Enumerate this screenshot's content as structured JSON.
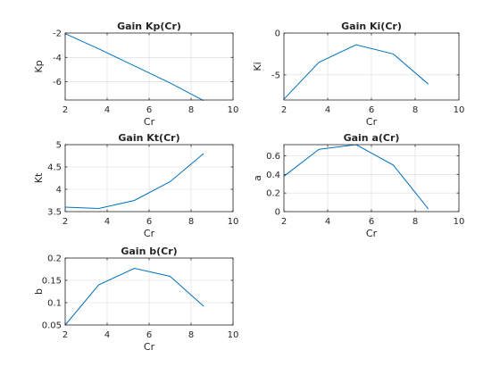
{
  "chart_data": [
    {
      "type": "line",
      "title": "Gain Kp(Cr)",
      "xlabel": "Cr",
      "ylabel": "Kp",
      "xlim": [
        2,
        10
      ],
      "ylim": [
        -7.5,
        -2
      ],
      "xticks": [
        2,
        4,
        6,
        8,
        10
      ],
      "yticks": [
        -2,
        -4,
        -6
      ],
      "grid": true,
      "color": "#0072BD",
      "x": [
        2,
        3.6,
        5.3,
        7,
        8.6
      ],
      "y": [
        -2.05,
        -3.3,
        -4.7,
        -6.1,
        -7.55
      ]
    },
    {
      "type": "line",
      "title": "Gain Ki(Cr)",
      "xlabel": "Cr",
      "ylabel": "Ki",
      "xlim": [
        2,
        10
      ],
      "ylim": [
        -8,
        0
      ],
      "xticks": [
        2,
        4,
        6,
        8,
        10
      ],
      "yticks": [
        0,
        -5
      ],
      "grid": true,
      "color": "#0072BD",
      "x": [
        2,
        3.6,
        5.3,
        7,
        8.6
      ],
      "y": [
        -7.9,
        -3.5,
        -1.4,
        -2.5,
        -6.1
      ]
    },
    {
      "type": "line",
      "title": "Gain Kt(Cr)",
      "xlabel": "Cr",
      "ylabel": "Kt",
      "xlim": [
        2,
        10
      ],
      "ylim": [
        3.5,
        5
      ],
      "xticks": [
        2,
        4,
        6,
        8,
        10
      ],
      "yticks": [
        3.5,
        4,
        4.5,
        5
      ],
      "grid": true,
      "color": "#0072BD",
      "x": [
        2,
        3.6,
        5.3,
        7,
        8.6
      ],
      "y": [
        3.6,
        3.57,
        3.75,
        4.17,
        4.8
      ]
    },
    {
      "type": "line",
      "title": "Gain a(Cr)",
      "xlabel": "Cr",
      "ylabel": "a",
      "xlim": [
        2,
        10
      ],
      "ylim": [
        0,
        0.72
      ],
      "xticks": [
        2,
        4,
        6,
        8,
        10
      ],
      "yticks": [
        0,
        0.2,
        0.4,
        0.6
      ],
      "grid": true,
      "color": "#0072BD",
      "x": [
        2,
        3.6,
        5.3,
        7,
        8.6
      ],
      "y": [
        0.38,
        0.67,
        0.72,
        0.5,
        0.03
      ]
    },
    {
      "type": "line",
      "title": "Gain b(Cr)",
      "xlabel": "Cr",
      "ylabel": "b",
      "xlim": [
        2,
        10
      ],
      "ylim": [
        0.05,
        0.2
      ],
      "xticks": [
        2,
        4,
        6,
        8,
        10
      ],
      "yticks": [
        0.05,
        0.1,
        0.15,
        0.2
      ],
      "grid": true,
      "color": "#0072BD",
      "x": [
        2,
        3.6,
        5.3,
        7,
        8.6
      ],
      "y": [
        0.05,
        0.14,
        0.177,
        0.159,
        0.092
      ]
    }
  ]
}
